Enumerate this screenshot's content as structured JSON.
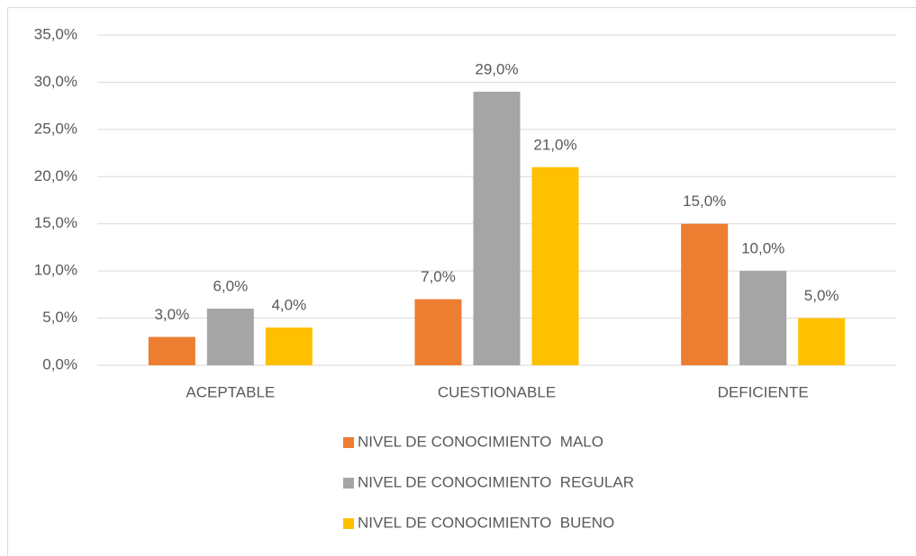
{
  "chart_data": {
    "type": "bar",
    "categories": [
      "ACEPTABLE",
      "CUESTIONABLE",
      "DEFICIENTE"
    ],
    "series": [
      {
        "name": "NIVEL DE CONOCIMIENTO  MALO",
        "color": "#ED7D31",
        "values": [
          3,
          7,
          15
        ],
        "value_labels": [
          "3,0%",
          "7,0%",
          "15,0%"
        ]
      },
      {
        "name": "NIVEL DE CONOCIMIENTO  REGULAR",
        "color": "#A5A5A5",
        "values": [
          6,
          29,
          10
        ],
        "value_labels": [
          "6,0%",
          "29,0%",
          "10,0%"
        ]
      },
      {
        "name": "NIVEL DE CONOCIMIENTO  BUENO",
        "color": "#FFC000",
        "values": [
          4,
          21,
          5
        ],
        "value_labels": [
          "4,0%",
          "21,0%",
          "5,0%"
        ]
      }
    ],
    "ylim": [
      0,
      35
    ],
    "yticks": [
      {
        "value": 0,
        "label": "0,0%"
      },
      {
        "value": 5,
        "label": "5,0%"
      },
      {
        "value": 10,
        "label": "10,0%"
      },
      {
        "value": 15,
        "label": "15,0%"
      },
      {
        "value": 20,
        "label": "20,0%"
      },
      {
        "value": 25,
        "label": "25,0%"
      },
      {
        "value": 30,
        "label": "30,0%"
      },
      {
        "value": 35,
        "label": "35,0%"
      }
    ],
    "grid": true,
    "legend": "bottom"
  }
}
